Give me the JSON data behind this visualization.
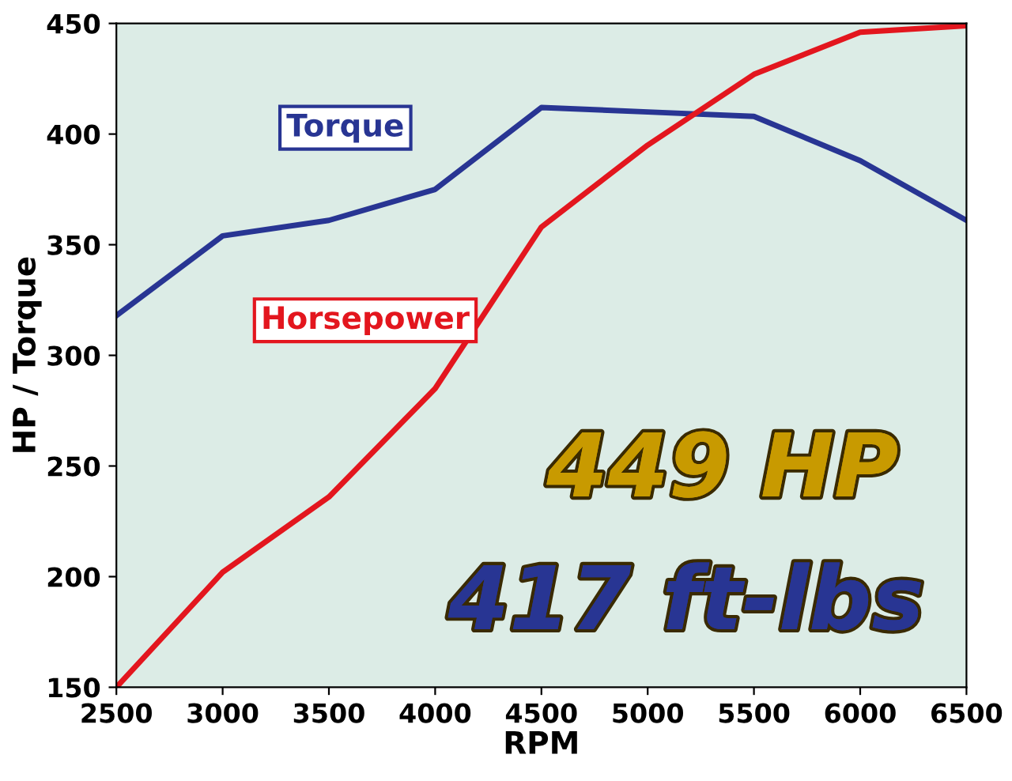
{
  "chart_data": {
    "type": "line",
    "xlabel": "RPM",
    "ylabel": "HP / Torque",
    "x": [
      2500,
      3000,
      3500,
      4000,
      4500,
      5000,
      5500,
      6000,
      6500
    ],
    "series": [
      {
        "name": "Torque",
        "color": "#283593",
        "values": [
          318,
          354,
          361,
          375,
          412,
          410,
          408,
          388,
          361
        ]
      },
      {
        "name": "Horsepower",
        "color": "#e3161e",
        "values": [
          150,
          202,
          236,
          285,
          358,
          395,
          427,
          446,
          449
        ]
      }
    ],
    "xlim": [
      2500,
      6500
    ],
    "xticks": [
      2500,
      3000,
      3500,
      4000,
      4500,
      5000,
      5500,
      6000,
      6500
    ],
    "ylim": [
      150,
      450
    ],
    "yticks": [
      150,
      200,
      250,
      300,
      350,
      400,
      450
    ],
    "grid": false,
    "legend": false,
    "marker": "none",
    "line_style": "solid",
    "annotations": [
      "449 HP",
      "417 ft-lbs"
    ]
  }
}
